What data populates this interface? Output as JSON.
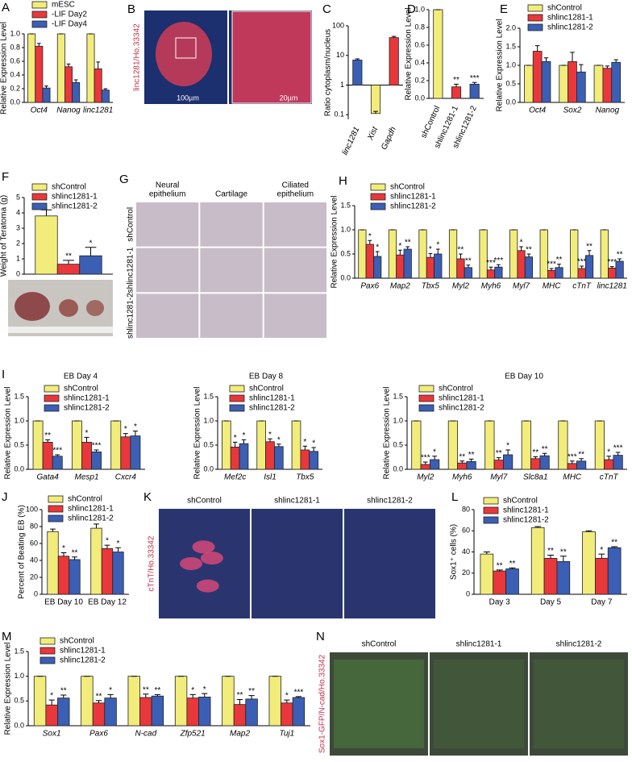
{
  "chart_data": [
    {
      "panel": "A",
      "type": "bar",
      "ylabel": "Relative Expression Level",
      "categories": [
        "Oct4",
        "Nanog",
        "linc1281"
      ],
      "italic_categories": true,
      "legend": "top-left",
      "series": [
        {
          "name": "mESC",
          "color": "#f2ec7b",
          "values": [
            1,
            1,
            1
          ],
          "errors": [
            0,
            0,
            0
          ]
        },
        {
          "name": "-LIF Day2",
          "color": "#e8383b",
          "values": [
            0.82,
            0.52,
            0.49
          ],
          "errors": [
            0.04,
            0.04,
            0.1
          ]
        },
        {
          "name": "-LIF Day4",
          "color": "#3b5fb5",
          "values": [
            0.21,
            0.29,
            0.18
          ],
          "errors": [
            0.03,
            0.04,
            0.02
          ]
        }
      ],
      "ylim": [
        0,
        1
      ],
      "yticks": [
        {
          "value": 0,
          "label": "0.0"
        },
        0.2,
        0.4,
        0.6,
        0.8,
        {
          "value": 1,
          "label": "1.0"
        }
      ]
    },
    {
      "panel": "C",
      "type": "bar",
      "ylabel": "Ratio cytoplasm/nucleus",
      "log": true,
      "categories": [
        "linc1281",
        "Xist",
        "Gapdh"
      ],
      "italic_categories": true,
      "rotate_labels": true,
      "values": [
        7,
        0.11,
        40
      ],
      "errors": [
        0.7,
        0.02,
        4
      ],
      "colors": [
        "#3b5fb5",
        "#f2ec7b",
        "#e8383b"
      ],
      "ylim": [
        0.07,
        100
      ],
      "yticks": [
        0.1,
        1,
        10,
        100
      ]
    },
    {
      "panel": "D",
      "type": "bar",
      "ylabel": "Relative Expression Level",
      "categories": [
        "shControl",
        "shlinc1281-1",
        "shlinc1281-2"
      ],
      "rotate_labels": true,
      "values": [
        1,
        0.13,
        0.16
      ],
      "errors": [
        0,
        0.03,
        0.02
      ],
      "colors": [
        "#f2ec7b",
        "#e8383b",
        "#3b5fb5"
      ],
      "significance": [
        null,
        "**",
        "***"
      ],
      "ylim": [
        0,
        1
      ],
      "yticks": [
        {
          "value": 0,
          "label": "0.0"
        },
        0.2,
        0.4,
        0.6,
        0.8,
        {
          "value": 1,
          "label": "1.0"
        }
      ]
    },
    {
      "panel": "E",
      "type": "bar",
      "ylabel": "Relative Expression Level",
      "categories": [
        "Oct4",
        "Sox2",
        "Nanog"
      ],
      "italic_categories": true,
      "legend": "top-left",
      "series": [
        {
          "name": "shControl",
          "color": "#f2ec7b",
          "values": [
            1,
            1,
            1
          ],
          "errors": [
            0,
            0,
            0
          ]
        },
        {
          "name": "shlinc1281-1",
          "color": "#e8383b",
          "values": [
            1.38,
            1.1,
            0.92
          ],
          "errors": [
            0.15,
            0.25,
            0.06
          ]
        },
        {
          "name": "shlinc1281-2",
          "color": "#3b5fb5",
          "values": [
            1.1,
            0.82,
            1.08
          ],
          "errors": [
            0.1,
            0.2,
            0.07
          ]
        }
      ],
      "ylim": [
        0,
        2
      ],
      "yticks": [
        {
          "value": 0,
          "label": "0.0"
        },
        0.5,
        {
          "value": 1,
          "label": "1.0"
        },
        1.5,
        {
          "value": 2,
          "label": "2.0"
        }
      ]
    },
    {
      "panel": "F",
      "type": "bar",
      "ylabel": "Weight of Teratoma (g)",
      "categories": [
        null
      ],
      "legend": "top-left",
      "series": [
        {
          "name": "shControl",
          "color": "#f2ec7b",
          "values": [
            3.8
          ],
          "errors": [
            0.4
          ]
        },
        {
          "name": "shlinc1281-1",
          "color": "#e8383b",
          "values": [
            0.65
          ],
          "errors": [
            0.25
          ],
          "significance": [
            "**"
          ]
        },
        {
          "name": "shlinc1281-2",
          "color": "#3b5fb5",
          "values": [
            1.2
          ],
          "errors": [
            0.55
          ],
          "significance": [
            "*"
          ]
        }
      ],
      "ylim": [
        0,
        5
      ],
      "yticks": [
        0,
        1,
        2,
        3,
        4,
        5
      ]
    },
    {
      "panel": "H",
      "type": "bar",
      "ylabel": "Relative Expression Level",
      "categories": [
        "Pax6",
        "Map2",
        "Tbx5",
        "Myl2",
        "Myh6",
        "Myl7",
        "MHC",
        "cTnT",
        "linc1281"
      ],
      "italic_categories": true,
      "legend": "top-left",
      "series": [
        {
          "name": "shControl",
          "color": "#f2ec7b",
          "values": [
            1,
            1,
            1,
            1,
            1,
            1,
            1,
            1,
            1
          ],
          "errors": [
            0,
            0,
            0,
            0,
            0,
            0,
            0,
            0,
            0
          ]
        },
        {
          "name": "shlinc1281-1",
          "color": "#e8383b",
          "values": [
            0.7,
            0.48,
            0.43,
            0.4,
            0.17,
            0.57,
            0.16,
            0.2,
            0.21
          ],
          "errors": [
            0.08,
            0.1,
            0.08,
            0.1,
            0.06,
            0.08,
            0.04,
            0.05,
            0.03
          ],
          "significance": [
            "*",
            "*",
            "*",
            "**",
            "***",
            "*",
            "***",
            "***",
            "***"
          ]
        },
        {
          "name": "shlinc1281-2",
          "color": "#3b5fb5",
          "values": [
            0.45,
            0.6,
            0.5,
            0.22,
            0.23,
            0.44,
            0.22,
            0.47,
            0.35
          ],
          "errors": [
            0.1,
            0.05,
            0.1,
            0.05,
            0.05,
            0.06,
            0.07,
            0.1,
            0.05
          ],
          "significance": [
            "*",
            "**",
            "*",
            "**",
            "***",
            "**",
            "**",
            "**",
            "**"
          ]
        }
      ],
      "ylim": [
        0,
        1.5
      ],
      "yticks": [
        {
          "value": 0,
          "label": "0.0"
        },
        0.5,
        {
          "value": 1,
          "label": "1.0"
        },
        1.5
      ]
    },
    {
      "panel": "I",
      "type": "bar",
      "title": "EB Day 4",
      "ylabel": "Relative Expression Level",
      "categories": [
        "Gata4",
        "Mesp1",
        "Cxcr4"
      ],
      "italic_categories": true,
      "legend": "top-left",
      "series": [
        {
          "name": "shControl",
          "color": "#f2ec7b",
          "values": [
            1,
            1,
            1
          ],
          "errors": [
            0,
            0,
            0
          ]
        },
        {
          "name": "shlinc1281-1",
          "color": "#e8383b",
          "values": [
            0.56,
            0.56,
            0.67
          ],
          "errors": [
            0.05,
            0.1,
            0.07
          ],
          "significance": [
            "**",
            "*",
            "*"
          ]
        },
        {
          "name": "shlinc1281-2",
          "color": "#3b5fb5",
          "values": [
            0.27,
            0.36,
            0.69
          ],
          "errors": [
            0.03,
            0.04,
            0.1
          ],
          "significance": [
            "***",
            "***",
            "*"
          ]
        }
      ],
      "ylim": [
        0,
        1.5
      ],
      "yticks": [
        {
          "value": 0,
          "label": "0.0"
        },
        0.5,
        {
          "value": 1,
          "label": "1.0"
        },
        1.5
      ]
    },
    {
      "type": "bar",
      "title": "EB Day 8",
      "ylabel": "Relative Expression Level",
      "categories": [
        "Mef2c",
        "Isl1",
        "Tbx5"
      ],
      "italic_categories": true,
      "legend": "top-left",
      "series": [
        {
          "name": "shControl",
          "color": "#f2ec7b",
          "values": [
            1,
            1,
            1
          ],
          "errors": [
            0,
            0,
            0
          ]
        },
        {
          "name": "shlinc1281-1",
          "color": "#e8383b",
          "values": [
            0.46,
            0.57,
            0.4
          ],
          "errors": [
            0.1,
            0.06,
            0.08
          ],
          "significance": [
            "*",
            "*",
            "*"
          ]
        },
        {
          "name": "shlinc1281-2",
          "color": "#3b5fb5",
          "values": [
            0.53,
            0.47,
            0.37
          ],
          "errors": [
            0.08,
            0.05,
            0.08
          ],
          "significance": [
            "*",
            "*",
            "*"
          ]
        }
      ],
      "ylim": [
        0,
        1.5
      ],
      "yticks": [
        {
          "value": 0,
          "label": "0.0"
        },
        0.5,
        {
          "value": 1,
          "label": "1.0"
        },
        1.5
      ]
    },
    {
      "type": "bar",
      "title": "EB Day 10",
      "ylabel": "Relative Expression Level",
      "categories": [
        "Myl2",
        "Myh6",
        "Myl7",
        "Slc8a1",
        "MHC",
        "cTnT"
      ],
      "italic_categories": true,
      "legend": "top-left",
      "series": [
        {
          "name": "shControl",
          "color": "#f2ec7b",
          "values": [
            1,
            1,
            1,
            1,
            1,
            1
          ],
          "errors": [
            0,
            0,
            0,
            0,
            0,
            0
          ]
        },
        {
          "name": "shlinc1281-1",
          "color": "#e8383b",
          "values": [
            0.1,
            0.13,
            0.19,
            0.22,
            0.12,
            0.2
          ],
          "errors": [
            0.05,
            0.04,
            0.05,
            0.04,
            0.05,
            0.07
          ],
          "significance": [
            "***",
            "**",
            "**",
            "**",
            "***",
            "*"
          ]
        },
        {
          "name": "shlinc1281-2",
          "color": "#3b5fb5",
          "values": [
            0.2,
            0.16,
            0.3,
            0.28,
            0.17,
            0.29
          ],
          "errors": [
            0.07,
            0.05,
            0.1,
            0.05,
            0.05,
            0.06
          ],
          "significance": [
            "*",
            "**",
            "*",
            "**",
            "**",
            "***"
          ]
        }
      ],
      "ylim": [
        0,
        1.5
      ],
      "yticks": [
        {
          "value": 0,
          "label": "0.0"
        },
        0.5,
        {
          "value": 1,
          "label": "1.0"
        },
        1.5
      ]
    },
    {
      "panel": "J",
      "type": "bar",
      "ylabel": "Percent of Beating EB (%)",
      "categories": [
        "EB Day 10",
        "EB Day 12"
      ],
      "legend": "top-left",
      "series": [
        {
          "name": "shControl",
          "color": "#f2ec7b",
          "values": [
            74,
            78
          ],
          "errors": [
            3,
            5
          ]
        },
        {
          "name": "shlinc1281-1",
          "color": "#e8383b",
          "values": [
            45,
            54
          ],
          "errors": [
            4,
            4
          ],
          "significance": [
            "*",
            "*"
          ]
        },
        {
          "name": "shlinc1281-2",
          "color": "#3b5fb5",
          "values": [
            41,
            50
          ],
          "errors": [
            3,
            5
          ],
          "significance": [
            "**",
            "*"
          ]
        }
      ],
      "ylim": [
        0,
        100
      ],
      "yticks": [
        0,
        20,
        40,
        60,
        80,
        100
      ]
    },
    {
      "panel": "L",
      "type": "bar",
      "ylabel": "Sox1⁺ cells (%)",
      "categories": [
        "Day 3",
        "Day 5",
        "Day 7"
      ],
      "legend": "top-left",
      "series": [
        {
          "name": "shControl",
          "color": "#f2ec7b",
          "values": [
            38,
            63,
            59
          ],
          "errors": [
            2,
            1,
            1
          ]
        },
        {
          "name": "shlinc1281-1",
          "color": "#e8383b",
          "values": [
            22,
            34,
            34
          ],
          "errors": [
            1,
            3,
            4
          ],
          "significance": [
            "**",
            "**",
            "*"
          ]
        },
        {
          "name": "shlinc1281-2",
          "color": "#3b5fb5",
          "values": [
            24,
            31,
            44
          ],
          "errors": [
            1,
            5,
            1
          ],
          "significance": [
            "**",
            "**",
            "**"
          ]
        }
      ],
      "ylim": [
        0,
        80
      ],
      "yticks": [
        0,
        20,
        40,
        60,
        80
      ]
    },
    {
      "panel": "M",
      "type": "bar",
      "ylabel": "Relative Expression Level",
      "categories": [
        "Sox1",
        "Pax6",
        "N-cad",
        "Zfp521",
        "Map2",
        "Tuj1"
      ],
      "italic_categories": true,
      "legend": "top-left",
      "series": [
        {
          "name": "shControl",
          "color": "#f2ec7b",
          "values": [
            1,
            1,
            1,
            1,
            1,
            1
          ],
          "errors": [
            0,
            0,
            0,
            0,
            0,
            0
          ]
        },
        {
          "name": "shlinc1281-1",
          "color": "#e8383b",
          "values": [
            0.42,
            0.46,
            0.57,
            0.56,
            0.43,
            0.46
          ],
          "errors": [
            0.1,
            0.05,
            0.07,
            0.07,
            0.1,
            0.06
          ],
          "significance": [
            "*",
            "**",
            "**",
            "*",
            "**",
            "*"
          ]
        },
        {
          "name": "shlinc1281-2",
          "color": "#3b5fb5",
          "values": [
            0.56,
            0.56,
            0.6,
            0.58,
            0.54,
            0.57
          ],
          "errors": [
            0.06,
            0.07,
            0.03,
            0.07,
            0.07,
            0.02
          ],
          "significance": [
            "**",
            "*",
            "**",
            "*",
            "**",
            "***"
          ]
        }
      ],
      "ylim": [
        0,
        1.5
      ],
      "yticks": [
        {
          "value": 0,
          "label": "0.0"
        },
        0.5,
        {
          "value": 1,
          "label": "1.0"
        },
        1.5
      ]
    }
  ],
  "images": [
    {
      "panel": "B",
      "caption": "linc1281/Ho.33342",
      "scale_bars": [
        "100µm",
        "20µm"
      ]
    },
    {
      "panel": "G",
      "columns": [
        [
          "Neural",
          "epithelium"
        ],
        [
          "Cartilage"
        ],
        [
          "Ciliated",
          "epithelium"
        ]
      ],
      "rows": [
        "shControl",
        "shlinc1281-1",
        "shlinc1281-2"
      ]
    },
    {
      "panel": "K",
      "columns": [
        [
          "shControl"
        ],
        [
          "shlinc1281-1"
        ],
        [
          "shlinc1281-2"
        ]
      ],
      "caption": "cTnT/Ho.33342"
    },
    {
      "panel": "N",
      "columns": [
        [
          "shControl"
        ],
        [
          "shlinc1281-1"
        ],
        [
          "shlinc1281-2"
        ]
      ],
      "caption": "Sox1-GFP/N-cad/Ho.33342"
    }
  ]
}
